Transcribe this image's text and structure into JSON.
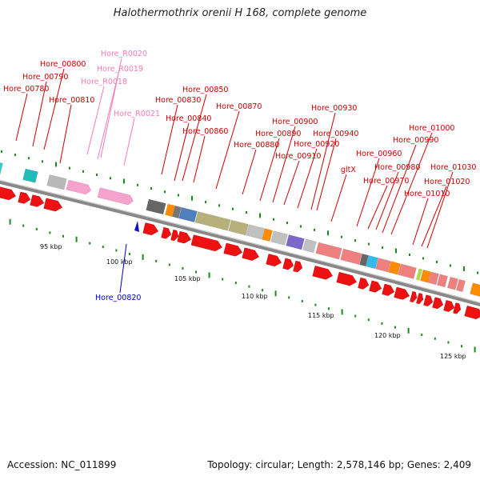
{
  "title": "Halothermothrix orenii H 168, complete genome",
  "footer": {
    "accession": "Accession: NC_011899",
    "summary": "Topology: circular; Length: 2,578,146 bp; Genes: 2,409"
  },
  "colors": {
    "label_red": "#cc0000",
    "label_pink": "#f07cb8",
    "label_blue": "#0000cc",
    "arrow_red": "#ee1111",
    "ruler_tick": "#1f8a1f",
    "backbone": "#888888"
  },
  "ruler": [
    "95 kbp",
    "100 kbp",
    "105 kbp",
    "110 kbp",
    "115 kbp",
    "120 kbp",
    "125 kbp"
  ],
  "labels": {
    "red": [
      "Hore_00780",
      "Hore_00790",
      "Hore_00800",
      "Hore_00810",
      "Hore_00830",
      "Hore_00840",
      "Hore_00850",
      "Hore_00860",
      "Hore_00870",
      "Hore_00880",
      "Hore_00890",
      "Hore_00900",
      "Hore_00910",
      "Hore_00920",
      "Hore_00930",
      "Hore_00940",
      "gltX",
      "Hore_00960",
      "Hore_00970",
      "Hore_00980",
      "Hore_00990",
      "Hore_01000",
      "Hore_01010",
      "Hore_01020",
      "Hore_01030"
    ],
    "pink": [
      "Hore_R0020",
      "Hore_R0019",
      "Hore_R0018",
      "Hore_R0021"
    ],
    "blue": [
      "Hore_00820"
    ]
  }
}
